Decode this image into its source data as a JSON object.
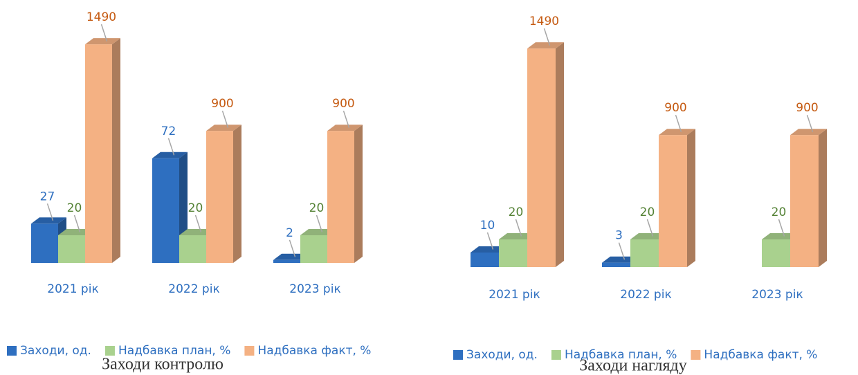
{
  "chart_data": [
    {
      "type": "bar",
      "title": "Заходи контролю",
      "categories": [
        "2021 рік",
        "2022 рік",
        "2023 рік"
      ],
      "series": [
        {
          "name": "Заходи, од.",
          "color": "#2e6fc0",
          "values": [
            27,
            72,
            2
          ]
        },
        {
          "name": "Надбавка план, %",
          "color": "#a9d18e",
          "values": [
            20,
            20,
            20
          ]
        },
        {
          "name": "Надбавка факт, %",
          "color": "#f4b183",
          "values": [
            1490,
            900,
            900
          ]
        }
      ]
    },
    {
      "type": "bar",
      "title": "Заходи нагляду",
      "categories": [
        "2021 рік",
        "2022 рік",
        "2023 рік"
      ],
      "series": [
        {
          "name": "Заходи, од.",
          "color": "#2e6fc0",
          "values": [
            10,
            3,
            null
          ]
        },
        {
          "name": "Надбавка план, %",
          "color": "#a9d18e",
          "values": [
            20,
            20,
            20
          ]
        },
        {
          "name": "Надбавка факт, %",
          "color": "#f4b183",
          "values": [
            1490,
            900,
            900
          ]
        }
      ]
    }
  ]
}
